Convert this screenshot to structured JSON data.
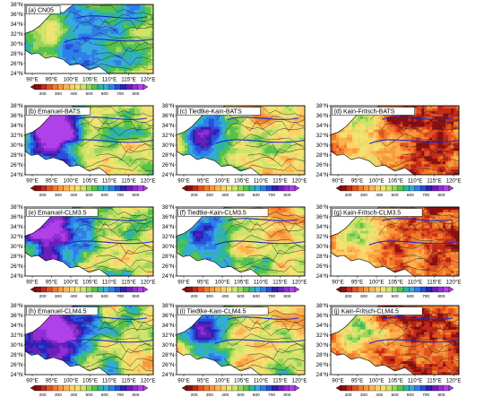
{
  "panels": [
    {
      "id": "a",
      "title": "(a) CN05",
      "pattern": "obs"
    },
    {
      "id": "b",
      "title": "(b) Emanuel-BATS",
      "pattern": "emanuel"
    },
    {
      "id": "c",
      "title": "(c) Tiedtke-Kain-BATS",
      "pattern": "tiedtke"
    },
    {
      "id": "d",
      "title": "(d) Kain-Fritsch-BATS",
      "pattern": "kf"
    },
    {
      "id": "e",
      "title": "(e) Emanuel-CLM3.5",
      "pattern": "emanuel"
    },
    {
      "id": "f",
      "title": "(f) Tiedtke-Kain-CLM3.5",
      "pattern": "tiedtke"
    },
    {
      "id": "g",
      "title": "(g) Kain-Fritsch-CLM3.5",
      "pattern": "kf"
    },
    {
      "id": "h",
      "title": "(h) Emanuel-CLM4.5",
      "pattern": "emanuel"
    },
    {
      "id": "i",
      "title": "(i) Tiedtke-Kain-CLM4.5",
      "pattern": "tiedtke"
    },
    {
      "id": "j",
      "title": "(j) Kain-Fritsch-CLM4.5",
      "pattern": "kf"
    }
  ],
  "lat_labels": [
    "38°N",
    "36°N",
    "34°N",
    "32°N",
    "30°N",
    "28°N",
    "26°N",
    "24°N"
  ],
  "lon_labels": [
    "90°E",
    "95°E",
    "100°E",
    "105°E",
    "110°E",
    "115°E",
    "120°E"
  ],
  "colorbar": {
    "ticks": [
      "200",
      "300",
      "400",
      "500",
      "600",
      "700",
      "800"
    ],
    "colors": [
      "#8b1010",
      "#c42a1a",
      "#e4501e",
      "#f27a2a",
      "#f79a3c",
      "#fbb34e",
      "#fcd06a",
      "#f0e470",
      "#cfe36a",
      "#9cd45a",
      "#56c24c",
      "#2eb4a2",
      "#38a8e0",
      "#2e7fe8",
      "#2a4fd8",
      "#2a22b8",
      "#6a1fb8",
      "#8f2fd8",
      "#b040e8"
    ]
  }
}
